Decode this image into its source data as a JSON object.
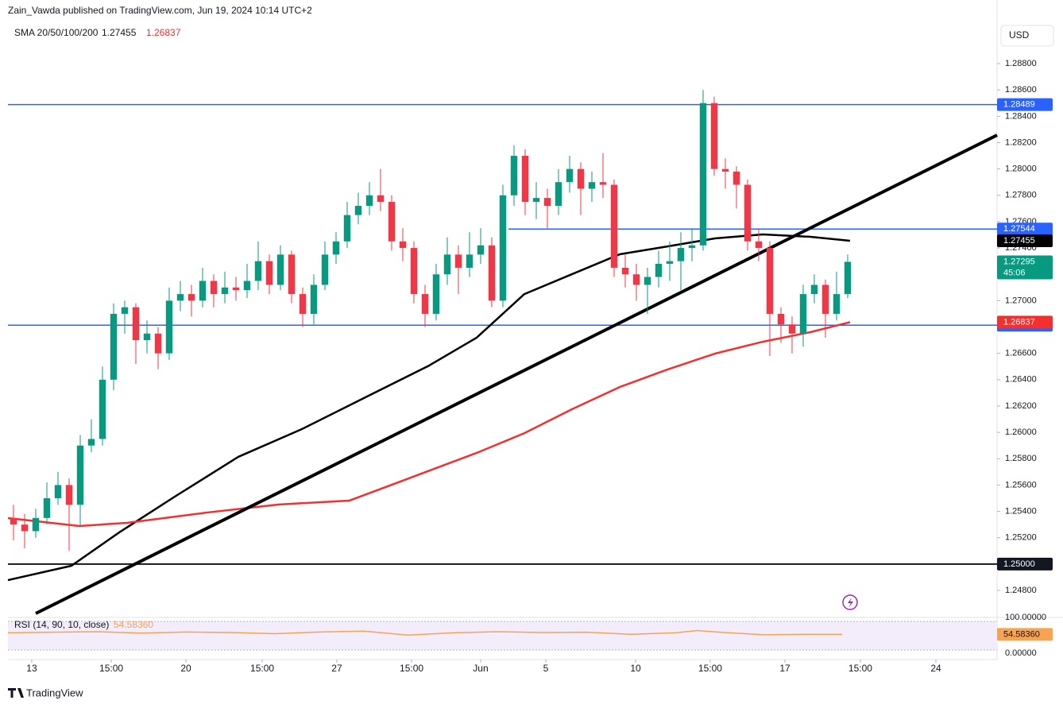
{
  "chart_data": {
    "type": "candlestick",
    "title": "Zain_Vawda published on TradingView.com, Jun 19, 2024 10:14 UTC+2",
    "currency": "USD",
    "brand": "TradingView",
    "countdown": "45:06",
    "up_color": "#089981",
    "down_color": "#f23645",
    "open": [
      1.2535,
      1.253,
      1.2525,
      1.2535,
      1.255,
      1.256,
      1.2545,
      1.259,
      1.2595,
      1.264,
      1.269,
      1.2695,
      1.267,
      1.2675,
      1.266,
      1.27,
      1.2705,
      1.27,
      1.2715,
      1.2705,
      1.271,
      1.2708,
      1.2715,
      1.273,
      1.2712,
      1.2735,
      1.2705,
      1.269,
      1.2712,
      1.2735,
      1.2745,
      1.2765,
      1.2772,
      1.278,
      1.2775,
      1.2745,
      1.274,
      1.2705,
      1.269,
      1.272,
      1.2735,
      1.2725,
      1.2735,
      1.2742,
      1.27,
      1.278,
      1.281,
      1.2775,
      1.2778,
      1.2772,
      1.279,
      1.28,
      1.2785,
      1.279,
      1.2788,
      1.2725,
      1.272,
      1.2712,
      1.2718,
      1.2728,
      1.273,
      1.274,
      1.2742,
      1.285,
      1.28,
      1.2798,
      1.2788,
      1.2745,
      1.274,
      1.269,
      1.2682,
      1.2675,
      1.2705,
      1.2712,
      1.269,
      1.2705
    ],
    "high": [
      1.2545,
      1.2538,
      1.2542,
      1.2562,
      1.257,
      1.2565,
      1.2598,
      1.261,
      1.265,
      1.2698,
      1.27,
      1.2698,
      1.2685,
      1.268,
      1.271,
      1.2715,
      1.2712,
      1.2725,
      1.272,
      1.2722,
      1.2718,
      1.2728,
      1.2745,
      1.2735,
      1.2742,
      1.2738,
      1.271,
      1.272,
      1.2745,
      1.2752,
      1.2775,
      1.2782,
      1.279,
      1.28,
      1.278,
      1.2755,
      1.2745,
      1.2712,
      1.2728,
      1.2748,
      1.2742,
      1.2752,
      1.2755,
      1.2748,
      1.2788,
      1.2818,
      1.2815,
      1.279,
      1.2785,
      1.28,
      1.281,
      1.2805,
      1.2798,
      1.2812,
      1.2792,
      1.2735,
      1.2728,
      1.2725,
      1.2738,
      1.2745,
      1.2752,
      1.2755,
      1.286,
      1.2855,
      1.2808,
      1.2802,
      1.2792,
      1.2755,
      1.2745,
      1.2695,
      1.2688,
      1.2712,
      1.272,
      1.2716,
      1.2722,
      1.2735
    ],
    "low": [
      1.2518,
      1.2512,
      1.252,
      1.253,
      1.2545,
      1.251,
      1.2528,
      1.2585,
      1.259,
      1.2632,
      1.2675,
      1.2652,
      1.266,
      1.2648,
      1.2655,
      1.2692,
      1.2688,
      1.2695,
      1.2695,
      1.2698,
      1.27,
      1.2702,
      1.2708,
      1.2705,
      1.2708,
      1.2698,
      1.268,
      1.2682,
      1.2708,
      1.2728,
      1.274,
      1.2758,
      1.2765,
      1.2768,
      1.2738,
      1.273,
      1.2698,
      1.268,
      1.2685,
      1.2712,
      1.2705,
      1.2718,
      1.2728,
      1.2695,
      1.2695,
      1.2772,
      1.2765,
      1.2762,
      1.2755,
      1.2765,
      1.2782,
      1.2765,
      1.2775,
      1.2778,
      1.2718,
      1.271,
      1.27,
      1.269,
      1.271,
      1.2715,
      1.2708,
      1.273,
      1.2738,
      1.2795,
      1.2785,
      1.277,
      1.2738,
      1.273,
      1.2658,
      1.2668,
      1.266,
      1.2665,
      1.2698,
      1.2672,
      1.2685,
      1.2702
    ],
    "close": [
      1.253,
      1.2525,
      1.2535,
      1.255,
      1.256,
      1.2545,
      1.259,
      1.2595,
      1.264,
      1.269,
      1.2695,
      1.267,
      1.2675,
      1.266,
      1.27,
      1.2705,
      1.27,
      1.2715,
      1.2705,
      1.271,
      1.2708,
      1.2715,
      1.273,
      1.2712,
      1.2735,
      1.2705,
      1.269,
      1.2712,
      1.2735,
      1.2745,
      1.2765,
      1.2772,
      1.278,
      1.2775,
      1.2745,
      1.274,
      1.2705,
      1.269,
      1.272,
      1.2735,
      1.2725,
      1.2735,
      1.2742,
      1.27,
      1.278,
      1.281,
      1.2775,
      1.2778,
      1.2772,
      1.279,
      1.28,
      1.2785,
      1.279,
      1.2788,
      1.2725,
      1.272,
      1.2712,
      1.2718,
      1.2728,
      1.273,
      1.274,
      1.2742,
      1.285,
      1.28,
      1.2798,
      1.2788,
      1.2745,
      1.274,
      1.269,
      1.2682,
      1.2675,
      1.2705,
      1.2712,
      1.269,
      1.2705,
      1.27295
    ],
    "xlim": [
      0,
      88.93
    ],
    "xticks": [
      {
        "value": 2.14,
        "label": "13"
      },
      {
        "value": 9.29,
        "label": "15:00"
      },
      {
        "value": 16,
        "label": "20"
      },
      {
        "value": 22.86,
        "label": "15:00"
      },
      {
        "value": 29.57,
        "label": "27"
      },
      {
        "value": 36.29,
        "label": "15:00"
      },
      {
        "value": 42.5,
        "label": "Jun"
      },
      {
        "value": 48.36,
        "label": "5"
      },
      {
        "value": 56.43,
        "label": "10"
      },
      {
        "value": 63.14,
        "label": "15:00"
      },
      {
        "value": 69.86,
        "label": "17"
      },
      {
        "value": 76.64,
        "label": "15:00"
      },
      {
        "value": 83.43,
        "label": "24"
      }
    ],
    "ylim": [
      1.24607,
      1.29283
    ],
    "yticks": [
      {
        "value": 1.288,
        "label": "1.28800"
      },
      {
        "value": 1.286,
        "label": "1.28600"
      },
      {
        "value": 1.284,
        "label": "1.28400"
      },
      {
        "value": 1.282,
        "label": "1.28200"
      },
      {
        "value": 1.28,
        "label": "1.28000"
      },
      {
        "value": 1.278,
        "label": "1.27800"
      },
      {
        "value": 1.276,
        "label": "1.27600"
      },
      {
        "value": 1.274,
        "label": "1.27400"
      },
      {
        "value": 1.27,
        "label": "1.27000"
      },
      {
        "value": 1.266,
        "label": "1.26600"
      },
      {
        "value": 1.264,
        "label": "1.26400"
      },
      {
        "value": 1.262,
        "label": "1.26200"
      },
      {
        "value": 1.26,
        "label": "1.26000"
      },
      {
        "value": 1.258,
        "label": "1.25800"
      },
      {
        "value": 1.256,
        "label": "1.25600"
      },
      {
        "value": 1.254,
        "label": "1.25400"
      },
      {
        "value": 1.252,
        "label": "1.25200"
      },
      {
        "value": 1.248,
        "label": "1.24800"
      }
    ],
    "sma": {
      "label": "SMA 20/50/100/200",
      "series": [
        {
          "color": "#000000",
          "current": 1.27455,
          "x": [
            0,
            5.71,
            10,
            15,
            20.71,
            26.43,
            32.14,
            37.86,
            42.14,
            46.43,
            50.71,
            55,
            59.29,
            63.57,
            67.86,
            72.14,
            75.71
          ],
          "values": [
            1.24878,
            1.24987,
            1.2524,
            1.25512,
            1.25814,
            1.26025,
            1.26266,
            1.26507,
            1.26719,
            1.2705,
            1.27201,
            1.27352,
            1.27412,
            1.27473,
            1.27503,
            1.27485,
            1.27455
          ]
        },
        {
          "color": "#f23030",
          "current": 1.26837,
          "x": [
            0,
            6.43,
            10.71,
            17.86,
            24.29,
            30.71,
            36.43,
            42.14,
            46.43,
            50.71,
            55,
            59.29,
            63.57,
            67.86,
            72.14,
            75.71
          ],
          "values": [
            1.25349,
            1.25289,
            1.25313,
            1.25391,
            1.25452,
            1.25482,
            1.25663,
            1.25844,
            1.25994,
            1.26176,
            1.26344,
            1.26477,
            1.26598,
            1.26688,
            1.26761,
            1.26837
          ]
        }
      ]
    },
    "trendline": {
      "color": "#000000",
      "x": [
        2.5,
        88.93
      ],
      "values": [
        1.24625,
        1.28257
      ]
    },
    "levels": [
      {
        "value": 1.28489,
        "color": "#2962ff",
        "from": 0
      },
      {
        "value": 1.27544,
        "color": "#2962ff",
        "from": 45
      },
      {
        "value": 1.26814,
        "color": "#2962ff",
        "from": 0
      },
      {
        "value": 1.25,
        "label": "1.25000",
        "color": "#131722",
        "from": 0
      }
    ],
    "rsi": {
      "label": "RSI (14, 90, 10, close)",
      "color": "#f7a350",
      "ylim": [
        0,
        100
      ],
      "yticks": [
        {
          "value": 100,
          "label": "100.00000"
        },
        {
          "value": 0,
          "label": "0.00000"
        }
      ],
      "x": [
        0,
        4,
        8,
        12,
        16,
        20,
        24,
        28,
        32,
        36,
        40,
        44,
        48,
        52,
        56,
        60,
        62,
        64,
        68,
        72,
        75
      ],
      "values": [
        60,
        62,
        64,
        59,
        63,
        61,
        57,
        63,
        66,
        52,
        60,
        64,
        61,
        62,
        55,
        60,
        68,
        62,
        53,
        55,
        54.5836
      ],
      "current": 54.5836,
      "current_label": "54.58360"
    }
  }
}
